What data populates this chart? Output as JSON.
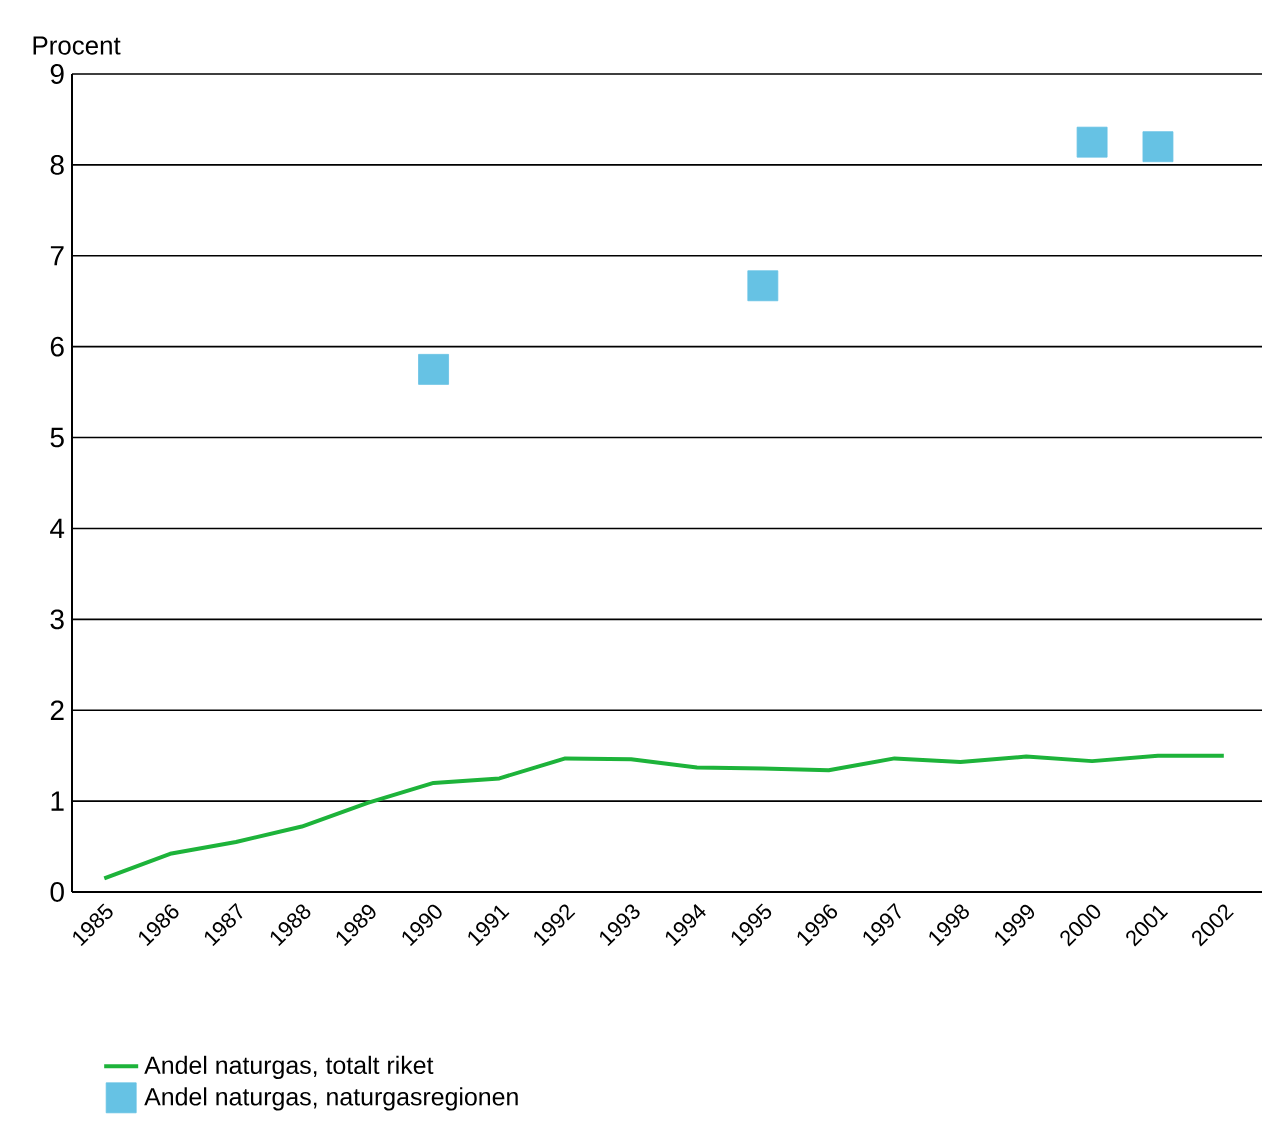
{
  "chart_data": {
    "type": "line",
    "ylabel": "Procent",
    "categories": [
      "1985",
      "1986",
      "1987",
      "1988",
      "1989",
      "1990",
      "1991",
      "1992",
      "1993",
      "1994",
      "1995",
      "1996",
      "1997",
      "1998",
      "1999",
      "2000",
      "2001",
      "2002"
    ],
    "series": [
      {
        "name": "Andel naturgas, totalt riket",
        "color": "#1db33a",
        "marker": "none",
        "values": [
          0.15,
          0.42,
          0.55,
          0.72,
          0.98,
          1.2,
          1.25,
          1.47,
          1.46,
          1.37,
          1.36,
          1.34,
          1.47,
          1.43,
          1.49,
          1.44,
          1.5,
          1.5
        ]
      },
      {
        "name": "Andel naturgas, naturgasregionen",
        "type": "scatter",
        "color": "#66c2e4",
        "marker": "square",
        "values": [
          null,
          null,
          null,
          null,
          null,
          5.75,
          null,
          null,
          null,
          null,
          6.67,
          null,
          null,
          null,
          null,
          8.25,
          8.2,
          null
        ]
      }
    ],
    "ylim": [
      0,
      9
    ],
    "yticks": [
      0,
      1,
      2,
      3,
      4,
      5,
      6,
      7,
      8,
      9
    ],
    "grid": "y",
    "legend": "bottom left"
  }
}
